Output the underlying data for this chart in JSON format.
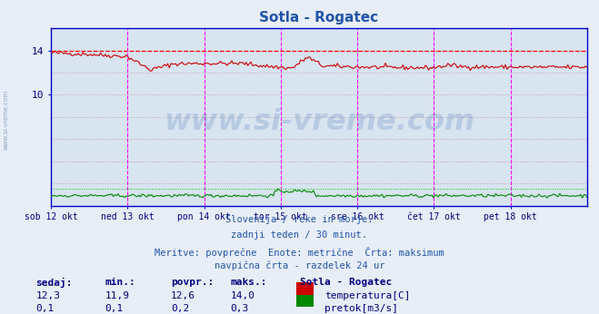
{
  "title": "Sotla - Rogatec",
  "title_color": "#2255aa",
  "bg_color": "#e8eef8",
  "plot_bg_color": "#d8e4f0",
  "x_label_dates": [
    "sob 12 okt",
    "ned 13 okt",
    "pon 14 okt",
    "tor 15 okt",
    "sre 16 okt",
    "čet 17 okt",
    "pet 18 okt"
  ],
  "y_ticks": [
    10,
    14
  ],
  "y_min": 0,
  "y_max": 16.0,
  "temp_color": "#cc0000",
  "pretok_color": "#008800",
  "max_temp_line_color": "#ff0000",
  "max_pretok_line_color": "#00cc00",
  "hgrid_color": "#c8a0a0",
  "hgrid_style": ":",
  "vgrid_color": "#c0c0c0",
  "vgrid_style": ":",
  "vline_color": "#ff00ff",
  "axis_color": "#0000cc",
  "watermark": "www.si-vreme.com",
  "watermark_color": "#2255aa",
  "watermark_alpha": 0.18,
  "subtitle_lines": [
    "Slovenija / reke in morje.",
    "zadnji teden / 30 minut.",
    "Meritve: povprečne  Enote: metrične  Črta: maksimum",
    "navpična črta - razdelek 24 ur"
  ],
  "subtitle_color": "#2255aa",
  "legend_title": "Sotla - Rogatec",
  "legend_items": [
    {
      "label": "temperatura[C]",
      "color": "#cc0000"
    },
    {
      "label": "pretok[m3/s]",
      "color": "#008800"
    }
  ],
  "stats_headers": [
    "sedaj:",
    "min.:",
    "povpr.:",
    "maks.:"
  ],
  "stats_temp": [
    12.3,
    11.9,
    12.6,
    14.0
  ],
  "stats_pretok": [
    0.1,
    0.1,
    0.2,
    0.3
  ],
  "stats_color": "#000080",
  "side_watermark": "www.si-vreme.com",
  "n_points": 336,
  "temp_max": 14.0,
  "temp_min": 11.9,
  "pretok_max": 0.3,
  "pretok_min": 0.1,
  "pretok_scale_max": 1.5
}
